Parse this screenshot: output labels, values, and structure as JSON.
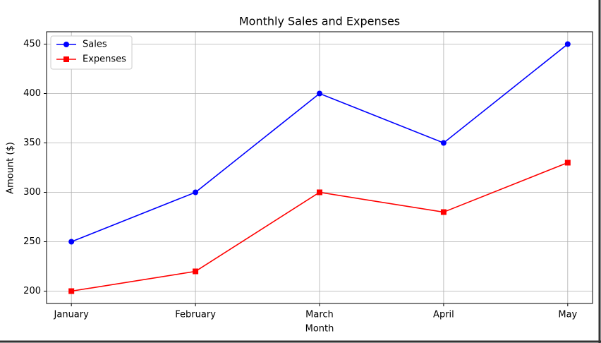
{
  "chart_data": {
    "type": "line",
    "title": "Monthly Sales and Expenses",
    "x_label": "Month",
    "y_label": "Amount ($)",
    "categories": [
      "January",
      "February",
      "March",
      "April",
      "May"
    ],
    "series": [
      {
        "name": "Sales",
        "color": "#0000ff",
        "marker": "circle",
        "values": [
          250,
          300,
          400,
          350,
          450
        ]
      },
      {
        "name": "Expenses",
        "color": "#ff0000",
        "marker": "square",
        "values": [
          200,
          220,
          300,
          280,
          330
        ]
      }
    ],
    "ylim": [
      187.5,
      462.5
    ],
    "yticks": [
      200,
      250,
      300,
      350,
      400,
      450
    ],
    "grid": true,
    "legend": "upper left"
  }
}
